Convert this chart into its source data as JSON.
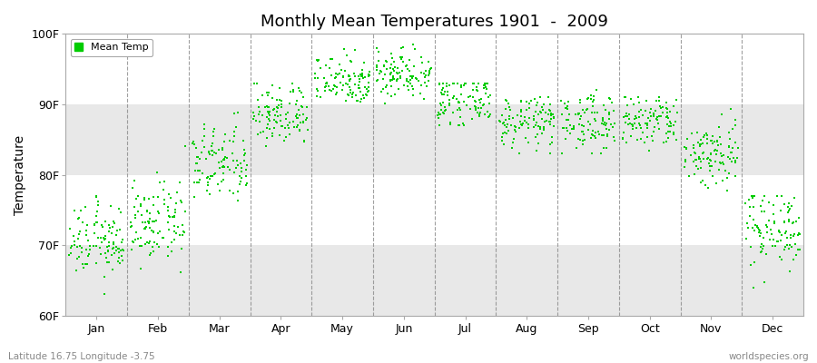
{
  "title": "Monthly Mean Temperatures 1901  -  2009",
  "ylabel": "Temperature",
  "xlabel_bottom_left": "Latitude 16.75 Longitude -3.75",
  "xlabel_bottom_right": "worldspecies.org",
  "ytick_labels": [
    "60F",
    "70F",
    "80F",
    "90F",
    "100F"
  ],
  "ytick_values": [
    60,
    70,
    80,
    90,
    100
  ],
  "ylim": [
    60,
    100
  ],
  "months": [
    "Jan",
    "Feb",
    "Mar",
    "Apr",
    "May",
    "Jun",
    "Jul",
    "Aug",
    "Sep",
    "Oct",
    "Nov",
    "Dec"
  ],
  "dot_color": "#00CC00",
  "dot_size": 3,
  "legend_label": "Mean Temp",
  "background_color": "#ffffff",
  "plot_bg_color": "#ffffff",
  "band_color": "#e8e8e8",
  "n_years": 109,
  "monthly_means": [
    70.5,
    73.0,
    81.5,
    88.5,
    93.5,
    94.5,
    90.5,
    87.5,
    87.5,
    87.5,
    83.0,
    72.5
  ],
  "monthly_stds": [
    2.5,
    2.8,
    2.8,
    2.2,
    1.8,
    1.8,
    1.8,
    1.8,
    2.0,
    2.0,
    2.5,
    2.8
  ],
  "monthly_mins": [
    62,
    65,
    75,
    84,
    89,
    90,
    87,
    83,
    83,
    83,
    76,
    64
  ],
  "monthly_maxs": [
    78,
    84,
    90,
    93,
    98,
    98.5,
    93,
    91,
    92,
    91,
    90,
    77
  ]
}
